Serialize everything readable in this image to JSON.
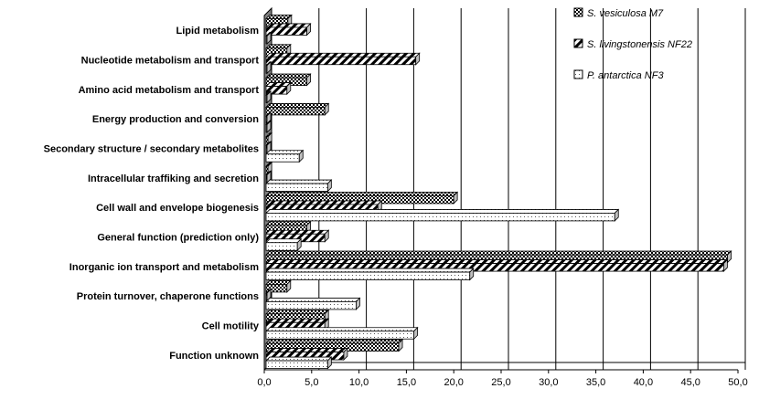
{
  "chart_data": {
    "type": "bar",
    "orientation": "horizontal",
    "style": "3d",
    "categories": [
      "Lipid metabolism",
      "Nucleotide metabolism and transport",
      "Amino acid metabolism and transport",
      "Energy production and conversion",
      "Secondary structure / secondary metabolites",
      "Intracellular traffiking and secretion",
      "Cell wall and envelope biogenesis",
      "General function (prediction only)",
      "Inorganic ion transport and metabolism",
      "Protein turnover, chaperone functions",
      "Cell motility",
      "Function unknown"
    ],
    "series": [
      {
        "name": "S. vesiculosa M7",
        "pattern": "checker-dark",
        "values": [
          2.3,
          2.2,
          4.3,
          6.2,
          0.2,
          0.2,
          19.8,
          4.3,
          48.7,
          2.2,
          6.2,
          14.0
        ]
      },
      {
        "name": "S. livingstonensis NF22",
        "pattern": "diagonal-stripes",
        "values": [
          4.3,
          15.8,
          2.2,
          0.1,
          0.1,
          0.1,
          11.8,
          6.2,
          48.3,
          0.1,
          6.2,
          8.2
        ]
      },
      {
        "name": "P. antarctica NF3",
        "pattern": "dotted-light",
        "values": [
          0.1,
          0.1,
          0.1,
          0.1,
          3.5,
          6.5,
          36.8,
          3.3,
          21.5,
          9.5,
          15.6,
          6.5
        ]
      }
    ],
    "xlim": [
      0,
      50
    ],
    "x_ticks": [
      "0,0",
      "5,0",
      "10,0",
      "15,0",
      "20,0",
      "25,0",
      "30,0",
      "35,0",
      "40,0",
      "45,0",
      "50,0"
    ],
    "grid": true,
    "legend_position": "top-right",
    "colors": {
      "fill": "#ffffff",
      "stroke": "#000000",
      "wall": "#808080",
      "grid": "#000000"
    }
  }
}
